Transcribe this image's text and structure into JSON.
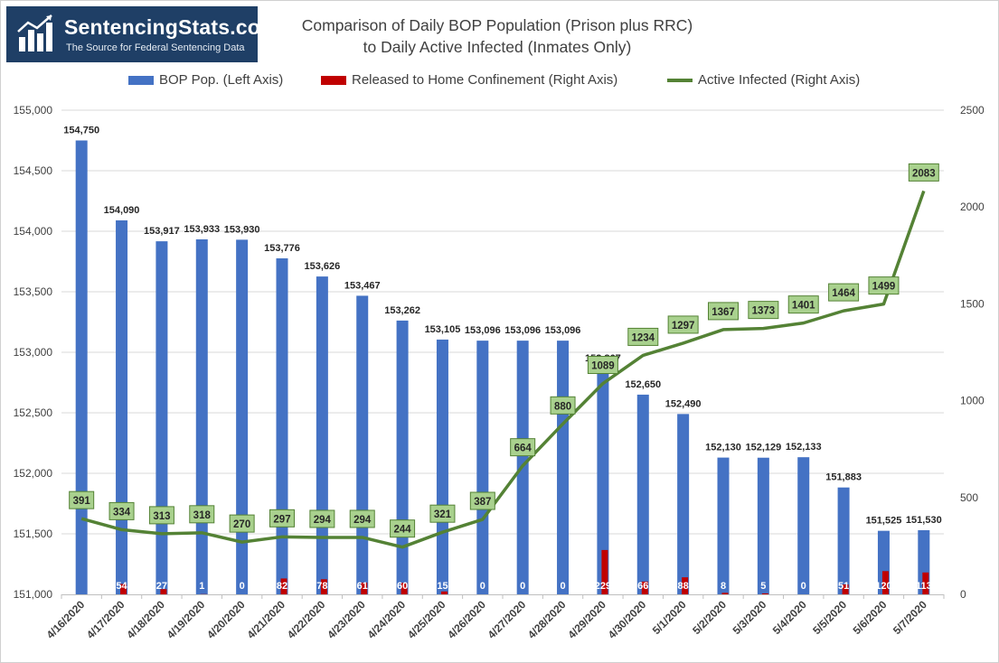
{
  "brand": {
    "name": "SentencingStats.com",
    "tagline": "The Source for Federal Sentencing Data"
  },
  "chart_data": {
    "type": "bar+line",
    "title": "Comparison of Daily BOP Population (Prison plus RRC)",
    "subtitle": "to Daily Active Infected (Inmates Only)",
    "categories": [
      "4/16/2020",
      "4/17/2020",
      "4/18/2020",
      "4/19/2020",
      "4/20/2020",
      "4/21/2020",
      "4/22/2020",
      "4/23/2020",
      "4/24/2020",
      "4/25/2020",
      "4/26/2020",
      "4/27/2020",
      "4/28/2020",
      "4/29/2020",
      "4/30/2020",
      "5/1/2020",
      "5/2/2020",
      "5/3/2020",
      "5/4/2020",
      "5/5/2020",
      "5/6/2020",
      "5/7/2020"
    ],
    "series": [
      {
        "name": "BOP Pop. (Left Axis)",
        "type": "bar",
        "axis": "left",
        "color": "#4472c4",
        "values": [
          154750,
          154090,
          153917,
          153933,
          153930,
          153776,
          153626,
          153467,
          153262,
          153105,
          153096,
          153096,
          153096,
          152867,
          152650,
          152490,
          152130,
          152129,
          152133,
          151883,
          151525,
          151530
        ],
        "labels": [
          "154,750",
          "154,090",
          "153,917",
          "153,933",
          "153,930",
          "153,776",
          "153,626",
          "153,467",
          "153,262",
          "153,105",
          "153,096",
          "153,096",
          "153,096",
          "152,867",
          "152,650",
          "152,490",
          "152,130",
          "152,129",
          "152,133",
          "151,883",
          "151,525",
          "151,530"
        ]
      },
      {
        "name": "Released to Home Confinement (Right Axis)",
        "type": "bar",
        "axis": "right",
        "color": "#c00000",
        "values": [
          0,
          54,
          27,
          1,
          0,
          82,
          78,
          61,
          60,
          15,
          0,
          0,
          0,
          229,
          66,
          88,
          8,
          5,
          0,
          51,
          120,
          113
        ],
        "labels": [
          "",
          "54",
          "27",
          "1",
          "0",
          "82",
          "78",
          "61",
          "60",
          "15",
          "0",
          "0",
          "0",
          "229",
          "66",
          "88",
          "8",
          "5",
          "0",
          "51",
          "120",
          "113"
        ]
      },
      {
        "name": "Active Infected (Right Axis)",
        "type": "line",
        "axis": "right",
        "color": "#548235",
        "values": [
          391,
          334,
          313,
          318,
          270,
          297,
          294,
          294,
          244,
          321,
          387,
          664,
          880,
          1089,
          1234,
          1297,
          1367,
          1373,
          1401,
          1464,
          1499,
          2083
        ],
        "labels": [
          "391",
          "334",
          "313",
          "318",
          "270",
          "297",
          "294",
          "294",
          "244",
          "321",
          "387",
          "664",
          "880",
          "1089",
          "1234",
          "1297",
          "1367",
          "1373",
          "1401",
          "1464",
          "1499",
          "2083"
        ]
      }
    ],
    "left_axis": {
      "min": 151000,
      "max": 155000,
      "step": 500,
      "ticks": [
        "151,000",
        "151,500",
        "152,000",
        "152,500",
        "153,000",
        "153,500",
        "154,000",
        "154,500",
        "155,000"
      ]
    },
    "right_axis": {
      "min": 0,
      "max": 2500,
      "step": 500,
      "ticks": [
        "0",
        "500",
        "1000",
        "1500",
        "2000",
        "2500"
      ]
    },
    "grid": true,
    "legend_position": "top",
    "label_box_color": "#a9d18e",
    "label_border_color": "#548235"
  }
}
